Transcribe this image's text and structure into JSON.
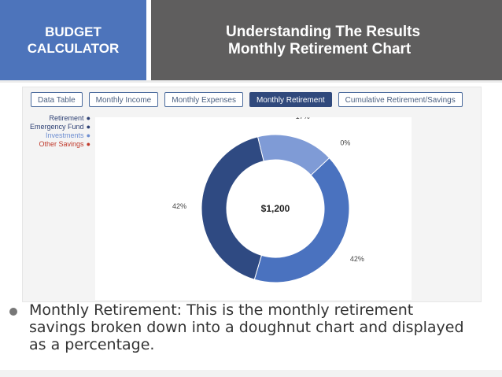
{
  "header": {
    "left_line1": "BUDGET",
    "left_line2": "CALCULATOR",
    "title_line1": "Understanding The Results",
    "title_line2": "Monthly Retirement Chart"
  },
  "tabs": [
    {
      "label": "Data Table",
      "active": false
    },
    {
      "label": "Monthly Income",
      "active": false
    },
    {
      "label": "Monthly Expenses",
      "active": false
    },
    {
      "label": "Monthly Retirement",
      "active": true
    },
    {
      "label": "Cumulative Retirement/Savings",
      "active": false
    }
  ],
  "legend": [
    {
      "label": "Retirement",
      "color": "#2c3f73"
    },
    {
      "label": "Emergency Fund",
      "color": "#2c3f73"
    },
    {
      "label": "Investments",
      "color": "#6f8fd1"
    },
    {
      "label": "Other Savings",
      "color": "#c0392b"
    }
  ],
  "chart_data": {
    "type": "pie",
    "center_label": "$1,200",
    "slices": [
      {
        "name": "Retirement",
        "value": 42,
        "label": "42%",
        "color": "#4a72bf"
      },
      {
        "name": "Emergency Fund",
        "value": 42,
        "label": "42%",
        "color": "#2f4a82"
      },
      {
        "name": "Investments",
        "value": 17,
        "label": "17%",
        "color": "#7f9bd6"
      },
      {
        "name": "Other Savings",
        "value": 0,
        "label": "0%",
        "color": "#c0392b"
      }
    ]
  },
  "bullet": {
    "text": "Monthly Retirement: This is the monthly retirement savings broken down into a doughnut chart and displayed as a percentage."
  }
}
